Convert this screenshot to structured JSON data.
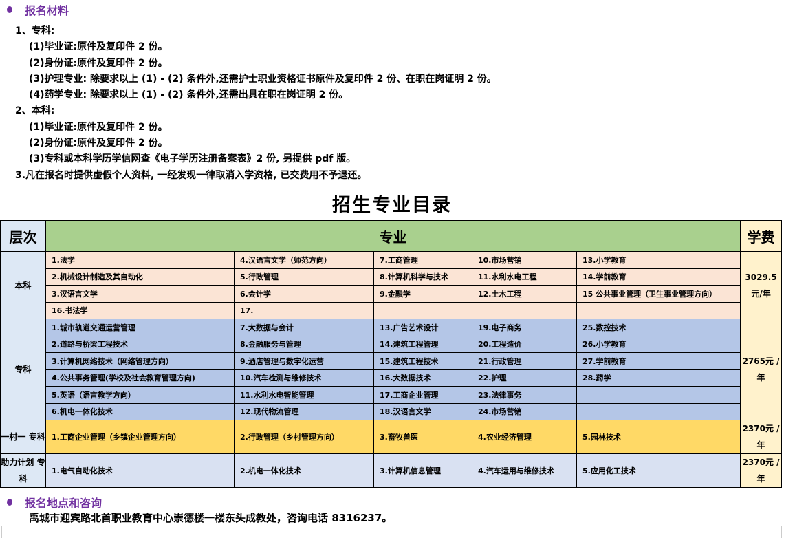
{
  "materials": {
    "title": "报名材料",
    "lines": [
      {
        "text": "1、专科:",
        "indent": 0
      },
      {
        "text": "(1)毕业证:原件及复印件 2 份。",
        "indent": 1
      },
      {
        "text": "(2)身份证:原件及复印件 2 份。",
        "indent": 1
      },
      {
        "text": "(3)护理专业: 除要求以上 (1) - (2) 条件外,还需护士职业资格证书原件及复印件 2 份、在职在岗证明 2 份。",
        "indent": 1
      },
      {
        "text": "(4)药学专业: 除要求以上 (1) - (2) 条件外,还需出具在职在岗证明 2 份。",
        "indent": 1
      },
      {
        "text": "2、本科:",
        "indent": 0
      },
      {
        "text": "(1)毕业证:原件及复印件 2 份。",
        "indent": 1
      },
      {
        "text": "(2)身份证:原件及复印件 2 份。",
        "indent": 1
      },
      {
        "text": "(3)专科或本科学历学信网查《电子学历注册备案表》2 份, 另提供 pdf 版。",
        "indent": 1
      },
      {
        "text": "3.凡在报名时提供虚假个人资料, 一经发现一律取消入学资格, 已交费用不予退还。",
        "indent": 0
      }
    ]
  },
  "catalog": {
    "title": "招生专业目录",
    "headers": {
      "level": "层次",
      "major": "专业",
      "fee": "学费"
    },
    "colors": {
      "header": "#a9d08e",
      "benke": "#fbe4d5",
      "zhuanke": "#b4c6e7",
      "yicun": "#ffd966",
      "zhuli": "#d9e1f2",
      "label": "#dde8f5",
      "fee": "#fff2cc"
    },
    "groups": [
      {
        "level": "本科",
        "fee": "3029.5 元/年",
        "color": "#fbe4d5",
        "rows": [
          [
            "1.法学",
            "4.汉语言文学（师范方向）",
            "7.工商管理",
            "10.市场营销",
            "13.小学教育"
          ],
          [
            "2.机械设计制造及其自动化",
            "5.行政管理",
            "8.计算机科学与技术",
            "11.水利水电工程",
            "14.学前教育"
          ],
          [
            "3.汉语言文学",
            "6.会计学",
            "9.金融学",
            "12.土木工程",
            "15 公共事业管理（卫生事业管理方向）"
          ],
          [
            "16.书法学",
            "17.",
            "",
            "",
            ""
          ]
        ]
      },
      {
        "level": "专科",
        "fee": "2765元 /年",
        "color": "#b4c6e7",
        "rows": [
          [
            "1.城市轨道交通运营管理",
            "7.大数据与会计",
            "13.广告艺术设计",
            "19.电子商务",
            "25.数控技术"
          ],
          [
            "2.道路与桥梁工程技术",
            "8.金融服务与管理",
            "14.建筑工程管理",
            "20.工程造价",
            "26.小学教育"
          ],
          [
            "3.计算机网络技术（网络管理方向）",
            "9.酒店管理与数字化运营",
            "15.建筑工程技术",
            "21.行政管理",
            "27.学前教育"
          ],
          [
            "4.公共事务管理(学校及社会教育管理方向)",
            "10.汽车检测与维修技术",
            "16.大数据技术",
            "22.护理",
            "28.药学"
          ],
          [
            "5.英语（语言教学方向）",
            "11.水利水电智能管理",
            "17.工商企业管理",
            "23.法律事务",
            ""
          ],
          [
            "6.机电一体化技术",
            "12.现代物流管理",
            "18.汉语言文学",
            "24.市场营销",
            ""
          ]
        ]
      },
      {
        "level": "一村一 专科",
        "fee": "2370元 /年",
        "color": "#ffd966",
        "rows": [
          [
            "1.工商企业管理（乡镇企业管理方向）",
            "2.行政管理（乡村管理方向）",
            "3.畜牧兽医",
            "4.农业经济管理",
            "5.园林技术"
          ]
        ]
      },
      {
        "level": "助力计划 专科",
        "fee": "2370元 /年",
        "color": "#d9e1f2",
        "rows": [
          [
            "1.电气自动化技术",
            "2.机电一体化技术",
            "3.计算机信息管理",
            "4.汽车运用与维修技术",
            "5.应用化工技术"
          ]
        ]
      }
    ]
  },
  "contact": {
    "title": "报名地点和咨询",
    "text": "禹城市迎宾路北首职业教育中心崇德楼一楼东头成教处，咨询电话 8316237。"
  }
}
